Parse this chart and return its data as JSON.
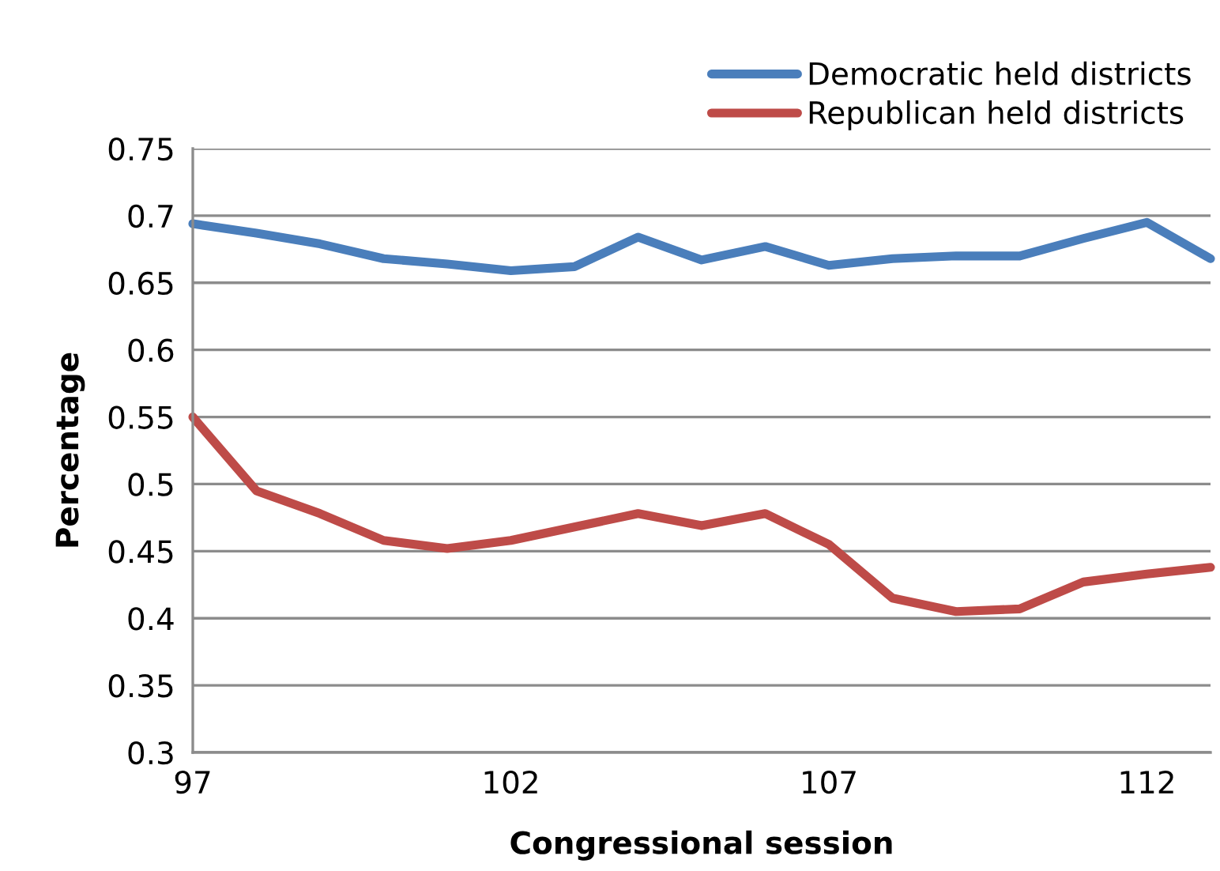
{
  "chart_data": {
    "type": "line",
    "xlabel": "Congressional session",
    "ylabel": "Percentage",
    "x": [
      97,
      98,
      99,
      100,
      101,
      102,
      103,
      104,
      105,
      106,
      107,
      108,
      109,
      110,
      111,
      112,
      113
    ],
    "series": [
      {
        "name": "Democratic held districts",
        "color": "#4a7ebb",
        "values": [
          0.694,
          0.687,
          0.679,
          0.668,
          0.664,
          0.659,
          0.662,
          0.684,
          0.667,
          0.677,
          0.663,
          0.668,
          0.67,
          0.67,
          0.683,
          0.695,
          0.668
        ]
      },
      {
        "name": "Republican held districts",
        "color": "#be4b48",
        "values": [
          0.55,
          0.495,
          0.478,
          0.458,
          0.452,
          0.458,
          0.468,
          0.478,
          0.469,
          0.478,
          0.455,
          0.415,
          0.405,
          0.407,
          0.427,
          0.433,
          0.438
        ]
      }
    ],
    "xlim": [
      97,
      113
    ],
    "xticks": [
      97,
      102,
      107,
      112
    ],
    "ylim": [
      0.3,
      0.75
    ],
    "yticks": [
      0.3,
      0.35,
      0.4,
      0.45,
      0.5,
      0.55,
      0.6,
      0.65,
      0.7,
      0.75
    ],
    "grid": "y",
    "legend": "top right",
    "marker": "none",
    "line_style": "solid"
  }
}
